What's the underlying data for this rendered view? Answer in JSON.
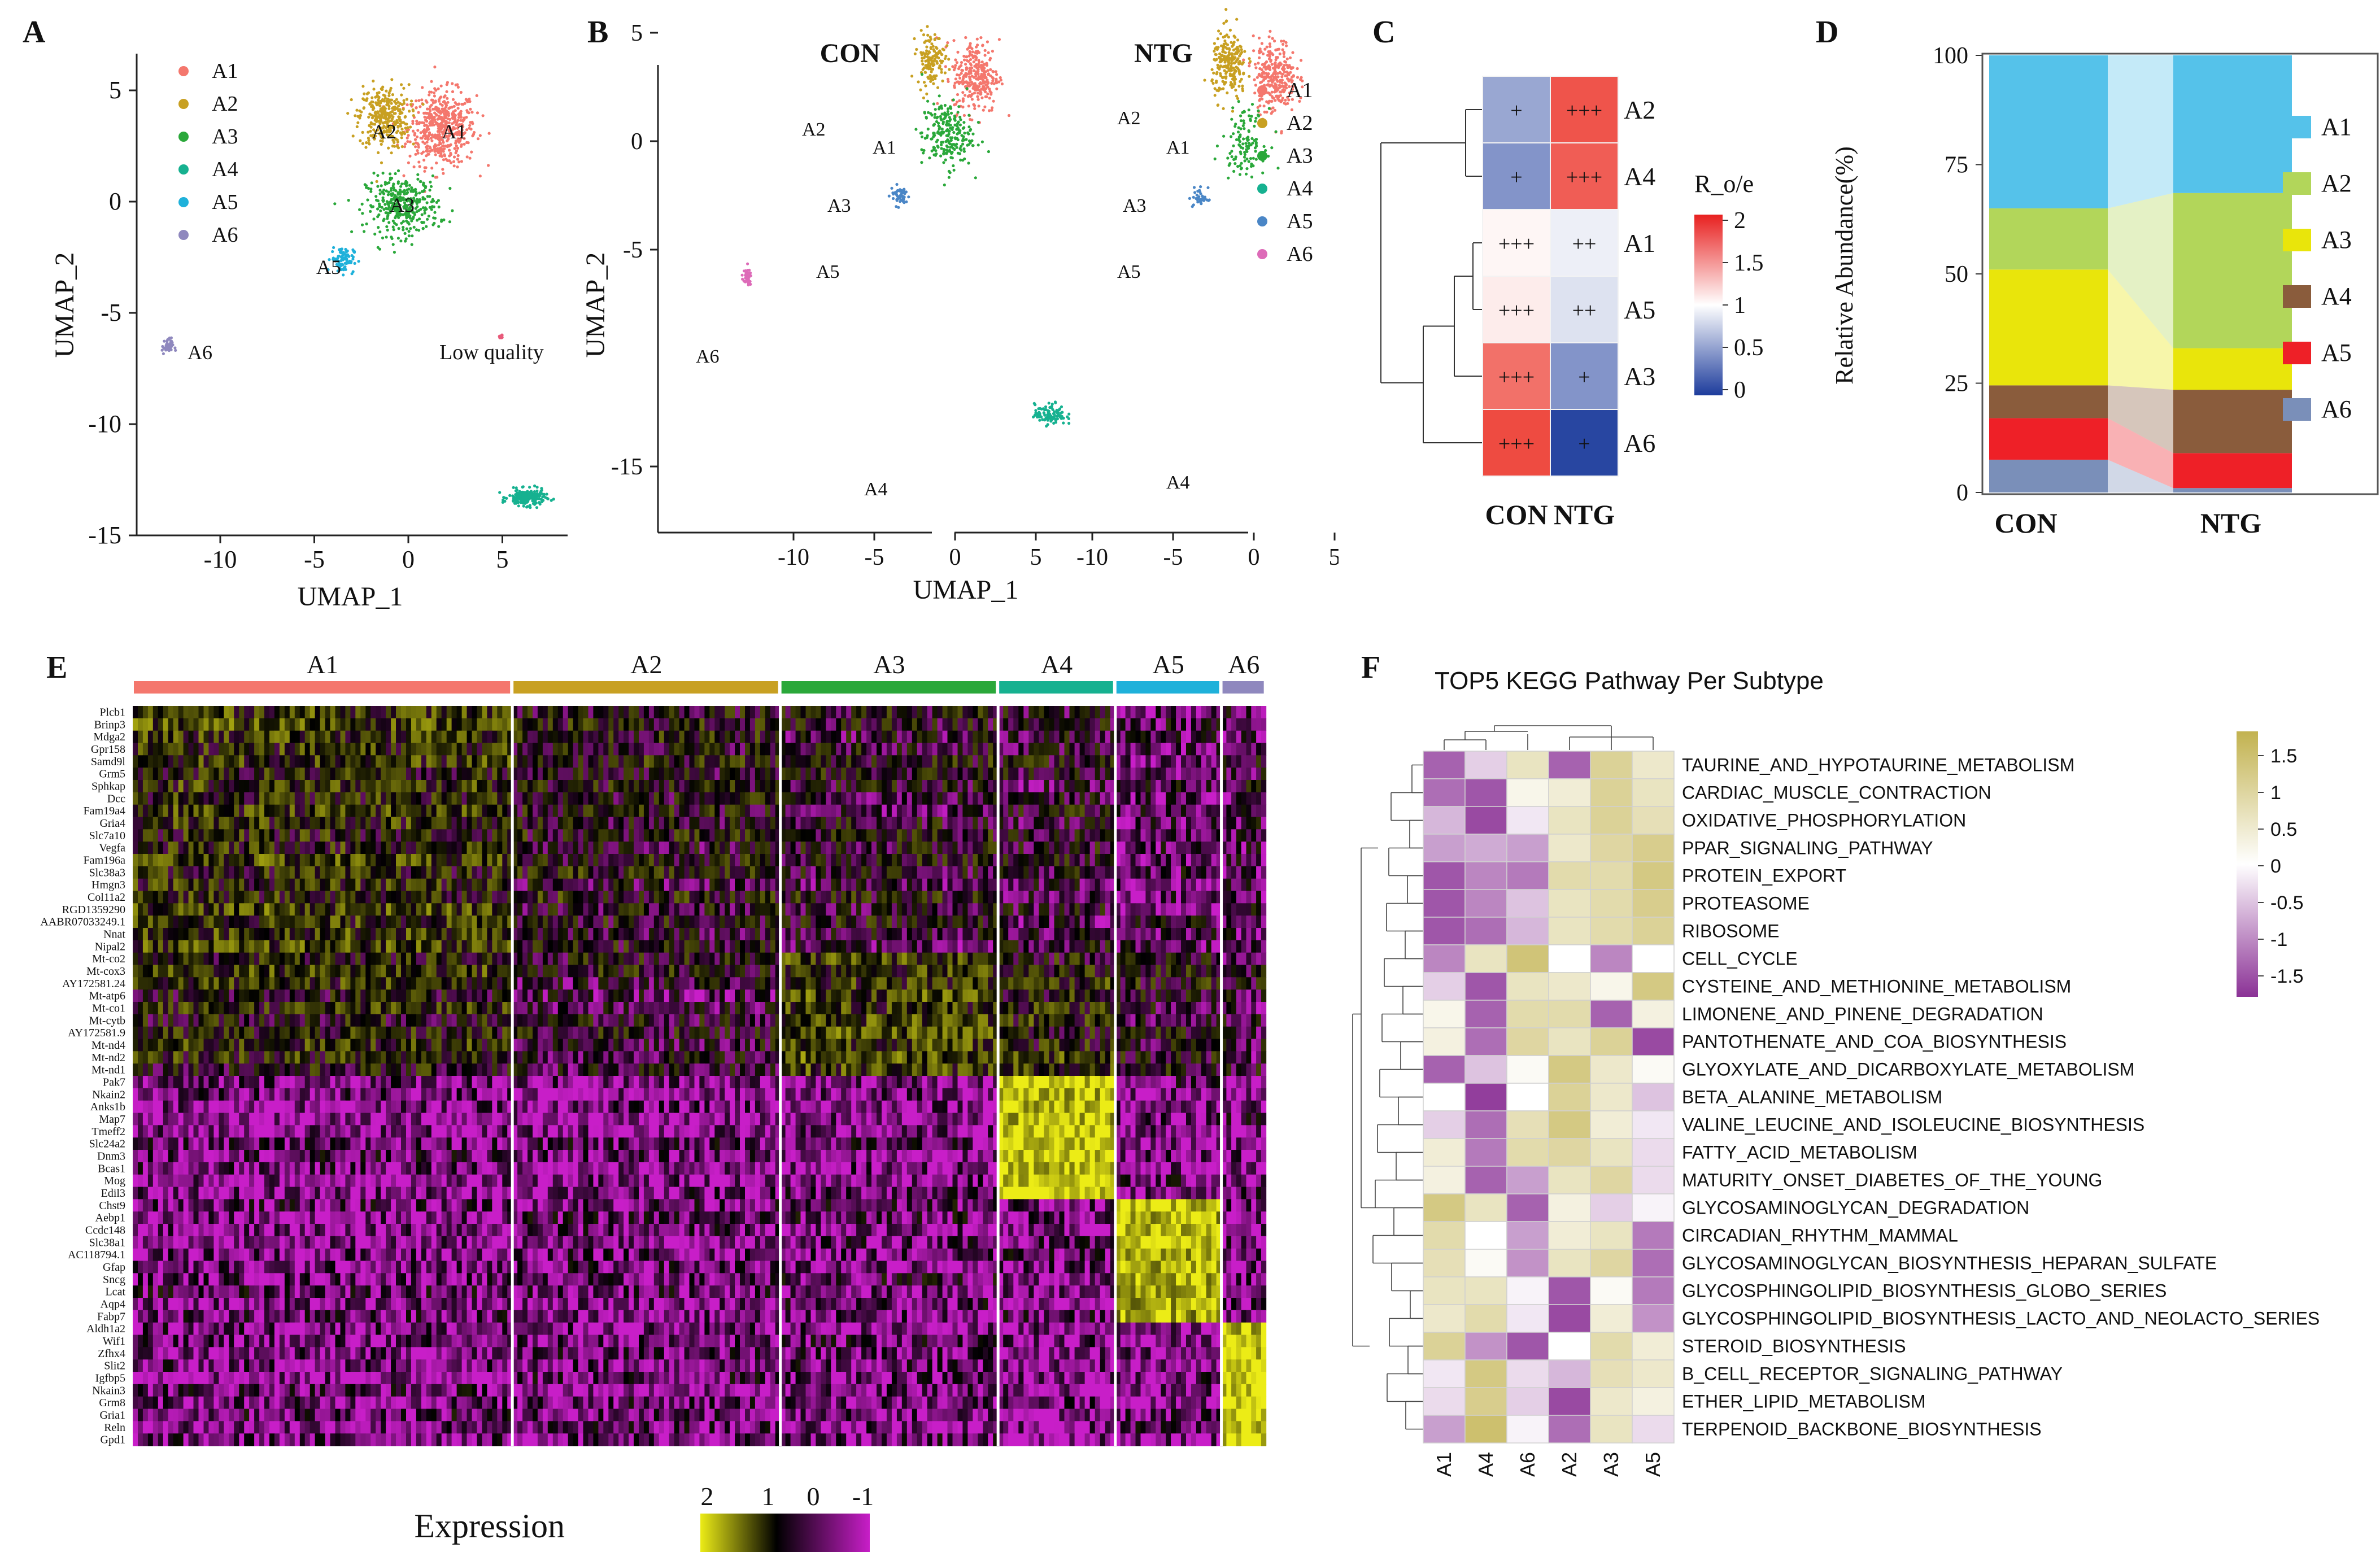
{
  "colors": {
    "A1": "#f4776d",
    "A2": "#c8a022",
    "A3": "#2aa83a",
    "A4": "#16b190",
    "A5": "#1fb1da",
    "A6": "#8f88be",
    "A5_B": "#4a86c6",
    "A6_B": "#dd6bb8",
    "D_A1": "#55c2ea",
    "D_A2": "#b2d65a",
    "D_A3": "#e9e50b",
    "D_A4": "#8a5c3c",
    "D_A5": "#ee2027",
    "D_A6": "#7a8fb9"
  },
  "chart_data": [
    {
      "panel": "A",
      "type": "scatter",
      "label": "A",
      "xlabel": "UMAP_1",
      "ylabel": "UMAP_2",
      "xticks": [
        "-10",
        "-5",
        "0",
        "5"
      ],
      "yticks": [
        "5",
        "0",
        "-5",
        "-10",
        "-15"
      ],
      "xlim": [
        -14,
        9
      ],
      "ylim": [
        -15,
        6
      ],
      "legend": [
        "A1",
        "A2",
        "A3",
        "A4",
        "A5",
        "A6"
      ],
      "cluster_labels": [
        "A1",
        "A2",
        "A3",
        "A5",
        "A6",
        "Low quality"
      ],
      "clusters": [
        {
          "name": "A1",
          "cx": 1.8,
          "cy": 3.3,
          "sx": 1.5,
          "sy": 1.4,
          "n": 520
        },
        {
          "name": "A2",
          "cx": -1.3,
          "cy": 3.8,
          "sx": 1.1,
          "sy": 1.2,
          "n": 320
        },
        {
          "name": "A3",
          "cx": -0.3,
          "cy": -0.2,
          "sx": 1.6,
          "sy": 1.1,
          "n": 360
        },
        {
          "name": "A4",
          "cx": 6.3,
          "cy": -13.3,
          "sx": 0.8,
          "sy": 0.3,
          "n": 220
        },
        {
          "name": "A5",
          "cx": -3.5,
          "cy": -2.6,
          "sx": 0.5,
          "sy": 0.5,
          "n": 90
        },
        {
          "name": "A6",
          "cx": -12.8,
          "cy": -6.5,
          "sx": 0.25,
          "sy": 0.3,
          "n": 40
        }
      ]
    },
    {
      "panel": "B",
      "type": "scatter",
      "label": "B",
      "groups": [
        "CON",
        "NTG"
      ],
      "xlabel": "UMAP_1",
      "ylabel": "UMAP_2",
      "xticks": [
        "-10",
        "-5",
        "0",
        "5"
      ],
      "yticks": [
        "5",
        "0",
        "-5",
        "-15"
      ],
      "legend": [
        "A1",
        "A2",
        "A3",
        "A4",
        "A5",
        "A6"
      ],
      "con_labels": [
        "A2",
        "A1",
        "A3",
        "A5",
        "A6",
        "A4"
      ],
      "ntg_labels": [
        "A2",
        "A1",
        "A3",
        "A5",
        "A4"
      ]
    },
    {
      "panel": "C",
      "type": "heatmap",
      "label": "C",
      "legend_title": "R_o/e",
      "legend_ticks": [
        "2",
        "1.5",
        "1",
        "0.5",
        "0"
      ],
      "rows": [
        "A2",
        "A4",
        "A1",
        "A5",
        "A3",
        "A6"
      ],
      "cols": [
        "CON",
        "NTG"
      ],
      "values": [
        [
          0.55,
          1.9
        ],
        [
          0.45,
          1.85
        ],
        [
          1.05,
          0.92
        ],
        [
          1.1,
          0.85
        ],
        [
          1.75,
          0.45
        ],
        [
          1.95,
          0.05
        ]
      ],
      "marks": [
        [
          "+",
          "+++"
        ],
        [
          "+",
          "+++"
        ],
        [
          "+++",
          "++"
        ],
        [
          "+++",
          "++"
        ],
        [
          "+++",
          "+"
        ],
        [
          "+++",
          "+"
        ]
      ]
    },
    {
      "panel": "D",
      "type": "bar",
      "label": "D",
      "ylabel": "Relative Abundance(%)",
      "yticks": [
        "100",
        "75",
        "50",
        "25",
        "0"
      ],
      "ylim": [
        0,
        100
      ],
      "categories": [
        "CON",
        "NTG"
      ],
      "series": [
        {
          "name": "A6",
          "values": [
            7.5,
            1
          ]
        },
        {
          "name": "A5",
          "values": [
            9.5,
            8
          ]
        },
        {
          "name": "A4",
          "values": [
            7.5,
            14.5
          ]
        },
        {
          "name": "A3",
          "values": [
            26.5,
            9.5
          ]
        },
        {
          "name": "A2",
          "values": [
            14,
            35.5
          ]
        },
        {
          "name": "A1",
          "values": [
            35,
            31.5
          ]
        }
      ],
      "legend": [
        "A1",
        "A2",
        "A3",
        "A4",
        "A5",
        "A6"
      ]
    },
    {
      "panel": "E",
      "type": "heatmap",
      "label": "E",
      "legend_title": "Expression",
      "legend_ticks": [
        "2",
        "1",
        "0",
        "-1"
      ],
      "groups": [
        {
          "name": "A1",
          "width": 0.34
        },
        {
          "name": "A2",
          "width": 0.24
        },
        {
          "name": "A3",
          "width": 0.195
        },
        {
          "name": "A4",
          "width": 0.105
        },
        {
          "name": "A5",
          "width": 0.095
        },
        {
          "name": "A6",
          "width": 0.04
        }
      ],
      "genes": [
        "Plcb1",
        "Brinp3",
        "Mdga2",
        "Gpr158",
        "Samd9l",
        "Grm5",
        "Sphkap",
        "Dcc",
        "Fam19a4",
        "Gria4",
        "Slc7a10",
        "Vegfa",
        "Fam196a",
        "Slc38a3",
        "Hmgn3",
        "Col11a2",
        "RGD1359290",
        "AABR07033249.1",
        "Nnat",
        "Nipal2",
        "Mt-co2",
        "Mt-cox3",
        "AY172581.24",
        "Mt-atp6",
        "Mt-co1",
        "Mt-cytb",
        "AY172581.9",
        "Mt-nd4",
        "Mt-nd2",
        "Mt-nd1",
        "Pak7",
        "Nkain2",
        "Anks1b",
        "Map7",
        "Tmeff2",
        "Slc24a2",
        "Dnm3",
        "Bcas1",
        "Mog",
        "Edil3",
        "Chst9",
        "Aebp1",
        "Ccdc148",
        "Slc38a1",
        "AC118794.1",
        "Gfap",
        "Sncg",
        "Lcat",
        "Aqp4",
        "Fabp7",
        "Aldh1a2",
        "Wif1",
        "Zfhx4",
        "Slit2",
        "Igfbp5",
        "Nkain3",
        "Grm8",
        "Gria1",
        "Reln",
        "Gpd1"
      ]
    },
    {
      "panel": "F",
      "type": "heatmap",
      "label": "F",
      "title": "TOP5 KEGG Pathway Per Subtype",
      "legend_ticks": [
        "1.5",
        "1",
        "0.5",
        "0",
        "-0.5",
        "-1",
        "-1.5"
      ],
      "cols": [
        "A1",
        "A4",
        "A6",
        "A2",
        "A3",
        "A5"
      ],
      "rows": [
        "TAURINE_AND_HYPOTAURINE_METABOLISM",
        "CARDIAC_MUSCLE_CONTRACTION",
        "OXIDATIVE_PHOSPHORYLATION",
        "PPAR_SIGNALING_PATHWAY",
        "PROTEIN_EXPORT",
        "PROTEASOME",
        "RIBOSOME",
        "CELL_CYCLE",
        "CYSTEINE_AND_METHIONINE_METABOLISM",
        "LIMONENE_AND_PINENE_DEGRADATION",
        "PANTOTHENATE_AND_COA_BIOSYNTHESIS",
        "GLYOXYLATE_AND_DICARBOXYLATE_METABOLISM",
        "BETA_ALANINE_METABOLISM",
        "VALINE_LEUCINE_AND_ISOLEUCINE_BIOSYNTHESIS",
        "FATTY_ACID_METABOLISM",
        "MATURITY_ONSET_DIABETES_OF_THE_YOUNG",
        "GLYCOSAMINOGLYCAN_DEGRADATION",
        "CIRCADIAN_RHYTHM_MAMMAL",
        "GLYCOSAMINOGLYCAN_BIOSYNTHESIS_HEPARAN_SULFATE",
        "GLYCOSPHINGOLIPID_BIOSYNTHESIS_GLOBO_SERIES",
        "GLYCOSPHINGOLIPID_BIOSYNTHESIS_LACTO_AND_NEOLACTO_SERIES",
        "STEROID_BIOSYNTHESIS",
        "B_CELL_RECEPTOR_SIGNALING_PATHWAY",
        "ETHER_LIPID_METABOLISM",
        "TERPENOID_BACKBONE_BIOSYNTHESIS"
      ],
      "values": [
        [
          -1.3,
          -0.4,
          0.6,
          -1.3,
          1.0,
          0.5
        ],
        [
          -1.2,
          -1.4,
          0.2,
          0.4,
          1.0,
          0.6
        ],
        [
          -0.6,
          -1.5,
          -0.2,
          0.6,
          1.0,
          0.7
        ],
        [
          -0.8,
          -0.7,
          -0.8,
          0.5,
          0.9,
          1.1
        ],
        [
          -1.4,
          -1.0,
          -1.1,
          0.8,
          0.8,
          1.2
        ],
        [
          -1.4,
          -1.0,
          -0.5,
          0.6,
          0.8,
          1.1
        ],
        [
          -1.4,
          -1.2,
          -0.6,
          0.6,
          0.8,
          1.0
        ],
        [
          -1.0,
          0.6,
          1.3,
          0.0,
          -1.0,
          0.0
        ],
        [
          -0.4,
          -1.4,
          0.6,
          0.5,
          0.2,
          1.2
        ],
        [
          0.2,
          -1.3,
          0.8,
          0.8,
          -1.3,
          0.3
        ],
        [
          0.3,
          -1.2,
          0.9,
          0.6,
          1.0,
          -1.5
        ],
        [
          -1.3,
          -0.5,
          0.1,
          1.2,
          0.5,
          0.1
        ],
        [
          0.0,
          -1.6,
          0.0,
          1.0,
          0.5,
          -0.5
        ],
        [
          -0.4,
          -1.2,
          0.7,
          1.2,
          0.4,
          -0.2
        ],
        [
          0.4,
          -1.1,
          0.8,
          0.9,
          0.6,
          -0.3
        ],
        [
          0.3,
          -1.3,
          -0.8,
          0.6,
          0.9,
          -0.3
        ],
        [
          1.2,
          0.6,
          -1.3,
          0.3,
          -0.4,
          -0.1
        ],
        [
          0.8,
          0.0,
          -0.8,
          0.4,
          0.6,
          -1.1
        ],
        [
          0.7,
          0.1,
          -0.9,
          0.6,
          0.9,
          -1.2
        ],
        [
          0.6,
          0.6,
          -0.1,
          -1.4,
          0.1,
          -1.1
        ],
        [
          0.5,
          0.8,
          -0.2,
          -1.5,
          0.4,
          -0.9
        ],
        [
          1.0,
          -0.9,
          -1.4,
          0.0,
          0.8,
          0.4
        ],
        [
          -0.2,
          1.2,
          -0.3,
          -0.6,
          0.7,
          0.5
        ],
        [
          -0.3,
          1.1,
          -0.4,
          -1.5,
          0.5,
          0.3
        ],
        [
          -0.8,
          1.4,
          -0.1,
          -1.2,
          0.6,
          -0.3
        ]
      ]
    }
  ]
}
